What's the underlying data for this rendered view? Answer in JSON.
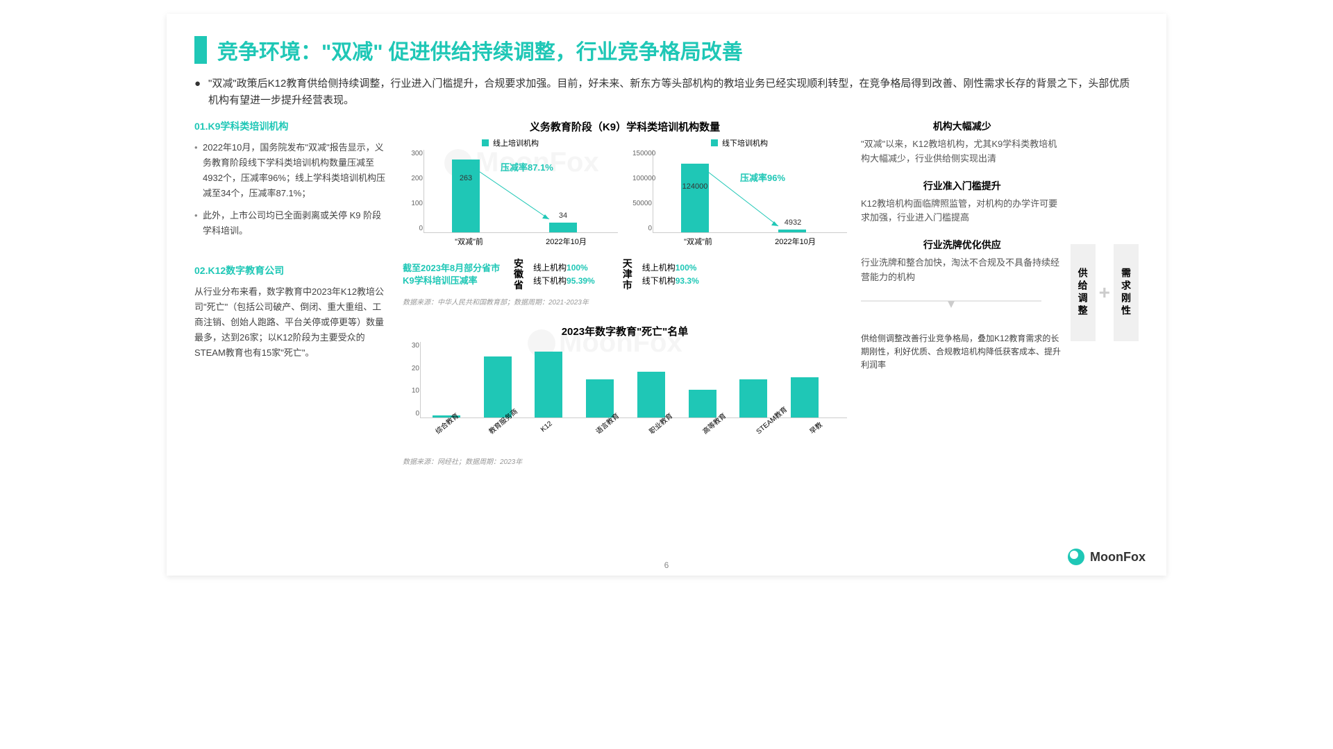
{
  "title": "竞争环境：\"双减\" 促进供给持续调整，行业竞争格局改善",
  "intro": "\"双减\"政策后K12教育供给侧持续调整，行业进入门槛提升，合规要求加强。目前，好未来、新东方等头部机构的教培业务已经实现顺利转型，在竞争格局得到改善、刚性需求长存的背景之下，头部优质机构有望进一步提升经营表现。",
  "left": {
    "sec1_header": "01.K9学科类培训机构",
    "sec1_items": [
      "2022年10月，国务院发布\"双减\"报告显示，义务教育阶段线下学科类培训机构数量压减至4932个，压减率96%；线上学科类培训机构压减至34个，压减率87.1%；",
      "此外，上市公司均已全面剥离或关停 K9 阶段学科培训。"
    ],
    "sec2_header": "02.K12数字教育公司",
    "sec2_body": "从行业分布来看，数字教育中2023年K12教培公司\"死亡\"（包括公司破产、倒闭、重大重组、工商注销、创始人跑路、平台关停或停更等）数量最多，达到26家；以K12阶段为主要受众的STEAM教育也有15家\"死亡\"。"
  },
  "chart1": {
    "title": "义务教育阶段（K9）学科类培训机构数量",
    "left": {
      "legend": "线上培训机构",
      "ymax": 300,
      "yticks": [
        "300",
        "200",
        "100",
        "0"
      ],
      "categories": [
        "\"双减\"前",
        "2022年10月"
      ],
      "values": [
        263,
        34
      ],
      "reduction": "压减率87.1%",
      "bar_color": "#1fc7b6"
    },
    "right": {
      "legend": "线下培训机构",
      "ymax": 150000,
      "yticks": [
        "150000",
        "100000",
        "50000",
        "0"
      ],
      "categories": [
        "\"双减\"前",
        "2022年10月"
      ],
      "values": [
        124000,
        4932
      ],
      "reduction": "压减率96%",
      "bar_color": "#1fc7b6"
    },
    "source": "数据来源：中华人民共和国教育部；数据周期：2021-2023年"
  },
  "regional": {
    "label": "截至2023年8月部分省市K9学科培训压减率",
    "regions": [
      {
        "name": "安徽省",
        "online_label": "线上机构",
        "online": "100%",
        "offline_label": "线下机构",
        "offline": "95.39%"
      },
      {
        "name": "天津市",
        "online_label": "线上机构",
        "online": "100%",
        "offline_label": "线下机构",
        "offline": "93.3%"
      }
    ]
  },
  "chart2": {
    "title": "2023年数字教育\"死亡\"名单",
    "ymax": 30,
    "yticks": [
      "30",
      "20",
      "10",
      "0"
    ],
    "categories": [
      "综合教育",
      "教育服务商",
      "K12",
      "语言教育",
      "职业教育",
      "高等教育",
      "STEAM教育",
      "早教"
    ],
    "values": [
      1,
      24,
      26,
      15,
      18,
      11,
      15,
      16
    ],
    "bar_color": "#1fc7b6",
    "source": "数据来源：网经社；数据周期：2023年"
  },
  "right": {
    "blocks": [
      {
        "title": "机构大幅减少",
        "body": "\"双减\"以来，K12教培机构，尤其K9学科类教培机构大幅减少，行业供给侧实现出清"
      },
      {
        "title": "行业准入门槛提升",
        "body": "K12教培机构面临牌照监管，对机构的办学许可要求加强，行业进入门槛提高"
      },
      {
        "title": "行业洗牌优化供应",
        "body": "行业洗牌和整合加快，淘汰不合规及不具备持续经营能力的机构"
      }
    ],
    "pillar1": "供给调整",
    "pillar2": "需求刚性",
    "summary": "供给侧调整改善行业竞争格局，叠加K12教育需求的长期刚性，利好优质、合规教培机构降低获客成本、提升利润率"
  },
  "page_num": "6",
  "logo": "MoonFox",
  "watermark": "MoonFox",
  "colors": {
    "accent": "#1fc7b6",
    "text": "#333333",
    "muted": "#999999",
    "bg": "#ffffff"
  }
}
